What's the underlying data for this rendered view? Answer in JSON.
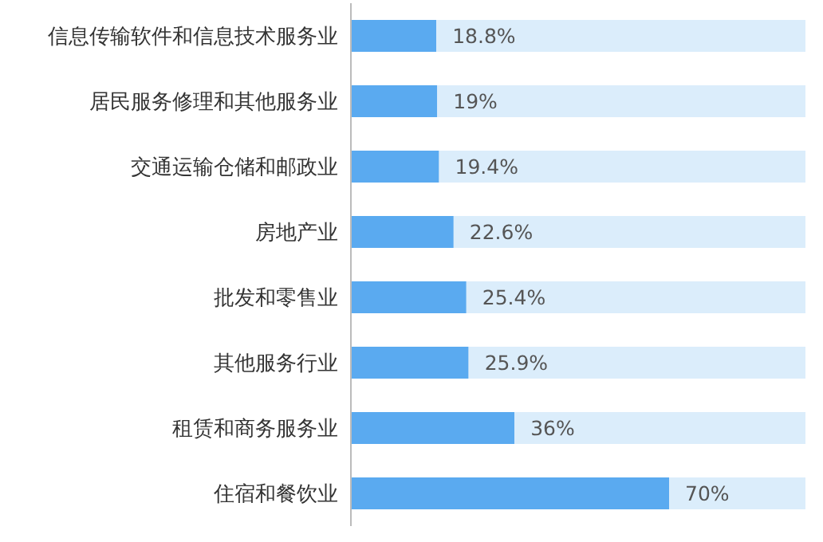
{
  "chart_data": {
    "type": "bar",
    "orientation": "horizontal",
    "stacked": true,
    "categories": [
      "信息传输软件和信息技术服务业",
      "居民服务修理和其他服务业",
      "交通运输仓储和邮政业",
      "房地产业",
      "批发和零售业",
      "其他服务行业",
      "租赁和商务服务业",
      "住宿和餐饮业"
    ],
    "series": [
      {
        "color": "#5aaaf0",
        "values": [
          18.8,
          19,
          19.4,
          22.6,
          25.4,
          25.9,
          36,
          70
        ],
        "value_labels": [
          "18.8%",
          "19%",
          "19.4%",
          "22.6%",
          "25.4%",
          "25.9%",
          "36%",
          "70%"
        ]
      },
      {
        "color": "#dbedfb",
        "values": [
          81.2,
          81,
          80.6,
          77.4,
          74.6,
          74.1,
          64,
          30
        ]
      }
    ],
    "xlim": [
      0,
      100
    ],
    "tick_labels": "y"
  }
}
